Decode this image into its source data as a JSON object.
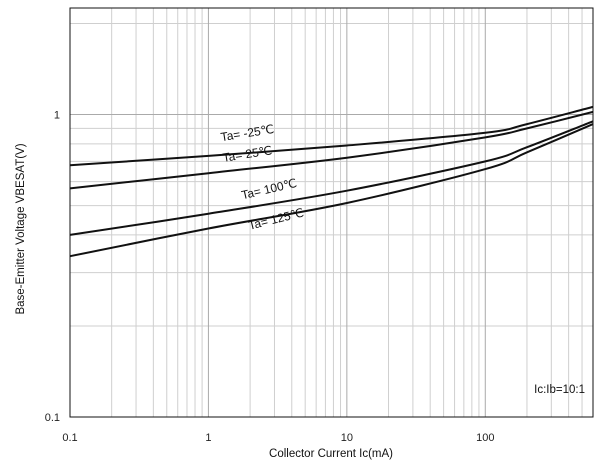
{
  "chart_data": {
    "type": "line",
    "x_scale": "log",
    "y_scale": "log",
    "xlabel": "Collector Current  Ic(mA)",
    "ylabel": "Base-Emitter Voltage  VBESAT(V)",
    "xlim": [
      0.1,
      600
    ],
    "ylim": [
      0.1,
      2.25
    ],
    "grid": true,
    "x_ticks": [
      {
        "value": 0.1,
        "label": "0.1"
      },
      {
        "value": 1,
        "label": "1"
      },
      {
        "value": 10,
        "label": "10"
      },
      {
        "value": 100,
        "label": "100"
      }
    ],
    "y_ticks": [
      {
        "value": 0.1,
        "label": "0.1"
      },
      {
        "value": 1,
        "label": "1"
      }
    ],
    "annotation": "Ic:Ib=10:1",
    "series": [
      {
        "name": "Ta= -25℃",
        "x": [
          0.1,
          1,
          10,
          100,
          200,
          600
        ],
        "y": [
          0.68,
          0.73,
          0.79,
          0.87,
          0.93,
          1.06
        ]
      },
      {
        "name": "Ta= 25℃",
        "x": [
          0.1,
          1,
          10,
          100,
          200,
          600
        ],
        "y": [
          0.57,
          0.64,
          0.72,
          0.84,
          0.9,
          1.02
        ]
      },
      {
        "name": "Ta= 100℃",
        "x": [
          0.1,
          1,
          10,
          100,
          200,
          600
        ],
        "y": [
          0.4,
          0.47,
          0.56,
          0.7,
          0.78,
          0.95
        ]
      },
      {
        "name": "Ta= 125℃",
        "x": [
          0.1,
          1,
          10,
          100,
          200,
          600
        ],
        "y": [
          0.34,
          0.42,
          0.51,
          0.66,
          0.75,
          0.93
        ]
      }
    ]
  }
}
